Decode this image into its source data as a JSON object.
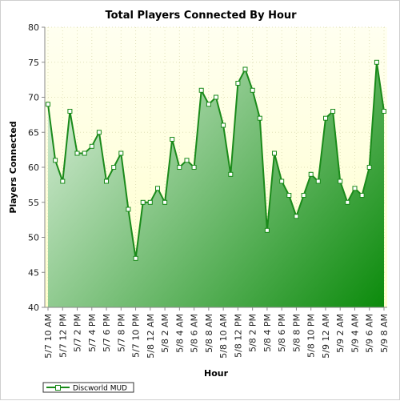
{
  "chart_data": {
    "type": "area",
    "title": "Total Players Connected By Hour",
    "xlabel": "Hour",
    "ylabel": "Players Connected",
    "ylim": [
      40,
      80
    ],
    "yticks": [
      40,
      45,
      50,
      55,
      60,
      65,
      70,
      75,
      80
    ],
    "grid": true,
    "legend_position": "bottom-left",
    "x_tick_labels": [
      "5/7 10 AM",
      "5/7 12 PM",
      "5/7 2 PM",
      "5/7 4 PM",
      "5/7 6 PM",
      "5/7 8 PM",
      "5/7 10 PM",
      "5/8 12 AM",
      "5/8 2 AM",
      "5/8 4 AM",
      "5/8 6 AM",
      "5/8 8 AM",
      "5/8 10 AM",
      "5/8 12 PM",
      "5/8 2 PM",
      "5/8 4 PM",
      "5/8 6 PM",
      "5/8 8 PM",
      "5/8 10 PM",
      "5/9 12 AM",
      "5/9 2 AM",
      "5/9 4 AM",
      "5/9 6 AM",
      "5/9 8 AM"
    ],
    "series": [
      {
        "name": "Discworld MUD",
        "color": "#1a8a1a",
        "values": [
          69,
          61,
          58,
          68,
          62,
          62,
          63,
          65,
          58,
          60,
          62,
          54,
          47,
          55,
          55,
          57,
          55,
          64,
          60,
          61,
          60,
          71,
          69,
          70,
          66,
          59,
          72,
          74,
          71,
          67,
          51,
          62,
          58,
          56,
          53,
          56,
          59,
          58,
          67,
          68,
          58,
          55,
          57,
          56,
          60,
          75,
          68
        ]
      }
    ]
  },
  "colors": {
    "plot_background_top": "#fffff0",
    "plot_background_bottom": "#ffffcc",
    "area_light": "#ecf7ec",
    "area_dark": "#0a8a0a",
    "line": "#1a8a1a",
    "grid": "#e0e0b8"
  }
}
